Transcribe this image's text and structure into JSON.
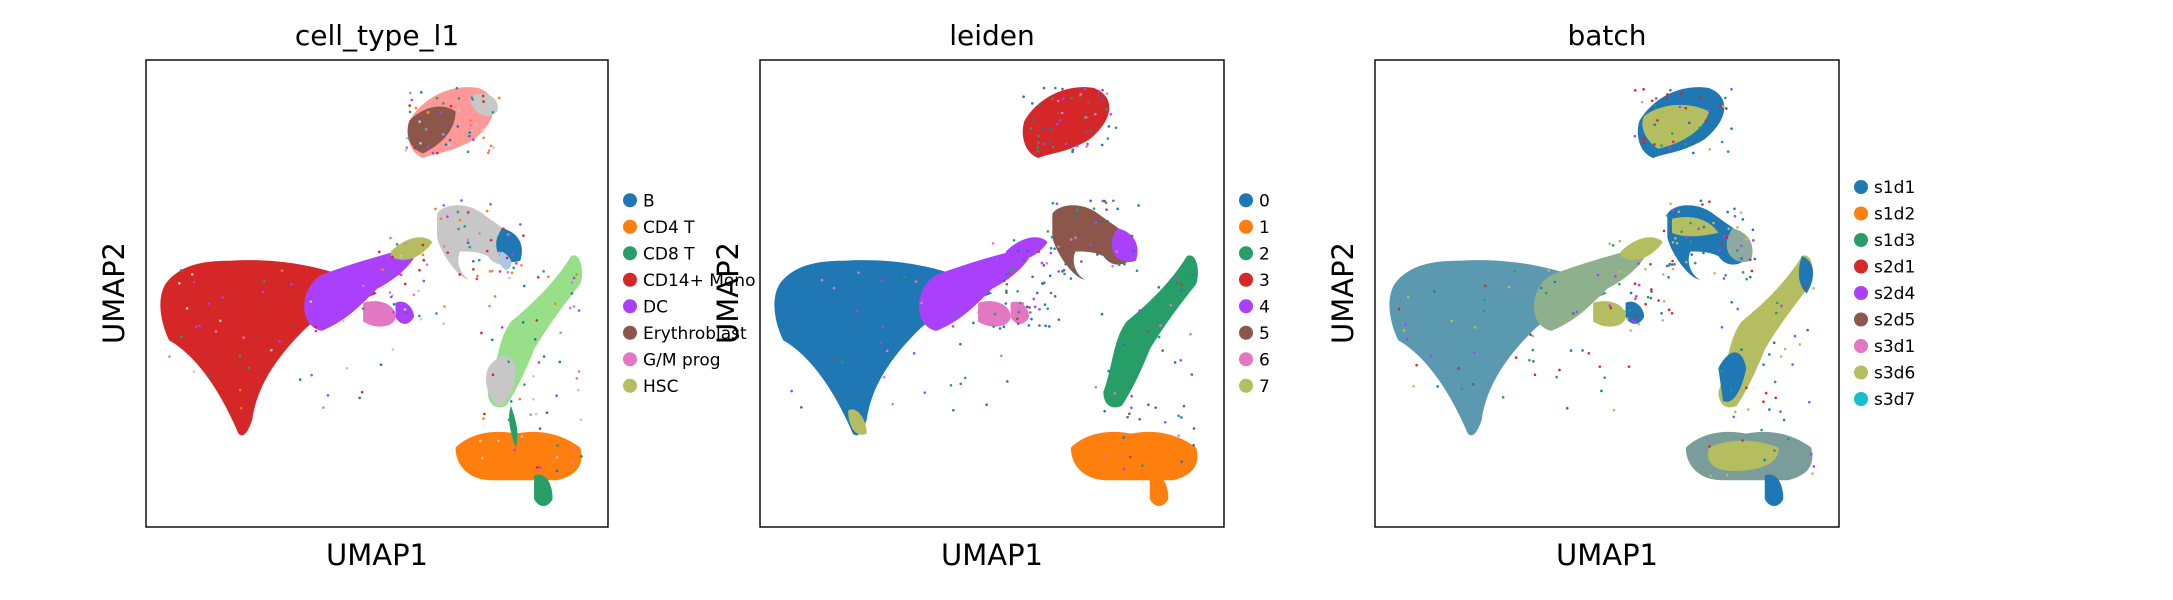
{
  "chart_data": [
    {
      "type": "scatter",
      "title": "cell_type_l1",
      "xlabel": "UMAP1",
      "ylabel": "UMAP2",
      "grid": false,
      "legend_position": "right",
      "legend": [
        {
          "label": "B",
          "color": "#1f77b4"
        },
        {
          "label": "CD4 T",
          "color": "#ff7f0e"
        },
        {
          "label": "CD8 T",
          "color": "#279e68"
        },
        {
          "label": "CD14+ Mono",
          "color": "#d62728"
        },
        {
          "label": "DC",
          "color": "#aa40fc"
        },
        {
          "label": "Erythroblast",
          "color": "#8c564b"
        },
        {
          "label": "G/M prog",
          "color": "#e377c2"
        },
        {
          "label": "HSC",
          "color": "#b5bd61"
        }
      ],
      "extra_colors": [
        "#aec7e8",
        "#98df8a",
        "#ff9896",
        "#c7c7c7"
      ]
    },
    {
      "type": "scatter",
      "title": "leiden",
      "xlabel": "UMAP1",
      "ylabel": "UMAP2",
      "grid": false,
      "legend_position": "right",
      "legend": [
        {
          "label": "0",
          "color": "#1f77b4"
        },
        {
          "label": "1",
          "color": "#ff7f0e"
        },
        {
          "label": "2",
          "color": "#279e68"
        },
        {
          "label": "3",
          "color": "#d62728"
        },
        {
          "label": "4",
          "color": "#aa40fc"
        },
        {
          "label": "5",
          "color": "#8c564b"
        },
        {
          "label": "6",
          "color": "#e377c2"
        },
        {
          "label": "7",
          "color": "#b5bd61"
        }
      ]
    },
    {
      "type": "scatter",
      "title": "batch",
      "xlabel": "UMAP1",
      "ylabel": "UMAP2",
      "grid": false,
      "legend_position": "right",
      "legend": [
        {
          "label": "s1d1",
          "color": "#1f77b4"
        },
        {
          "label": "s1d2",
          "color": "#ff7f0e"
        },
        {
          "label": "s1d3",
          "color": "#279e68"
        },
        {
          "label": "s2d1",
          "color": "#d62728"
        },
        {
          "label": "s2d4",
          "color": "#aa40fc"
        },
        {
          "label": "s2d5",
          "color": "#8c564b"
        },
        {
          "label": "s3d1",
          "color": "#e377c2"
        },
        {
          "label": "s3d6",
          "color": "#b5bd61"
        },
        {
          "label": "s3d7",
          "color": "#17becf"
        }
      ]
    }
  ]
}
